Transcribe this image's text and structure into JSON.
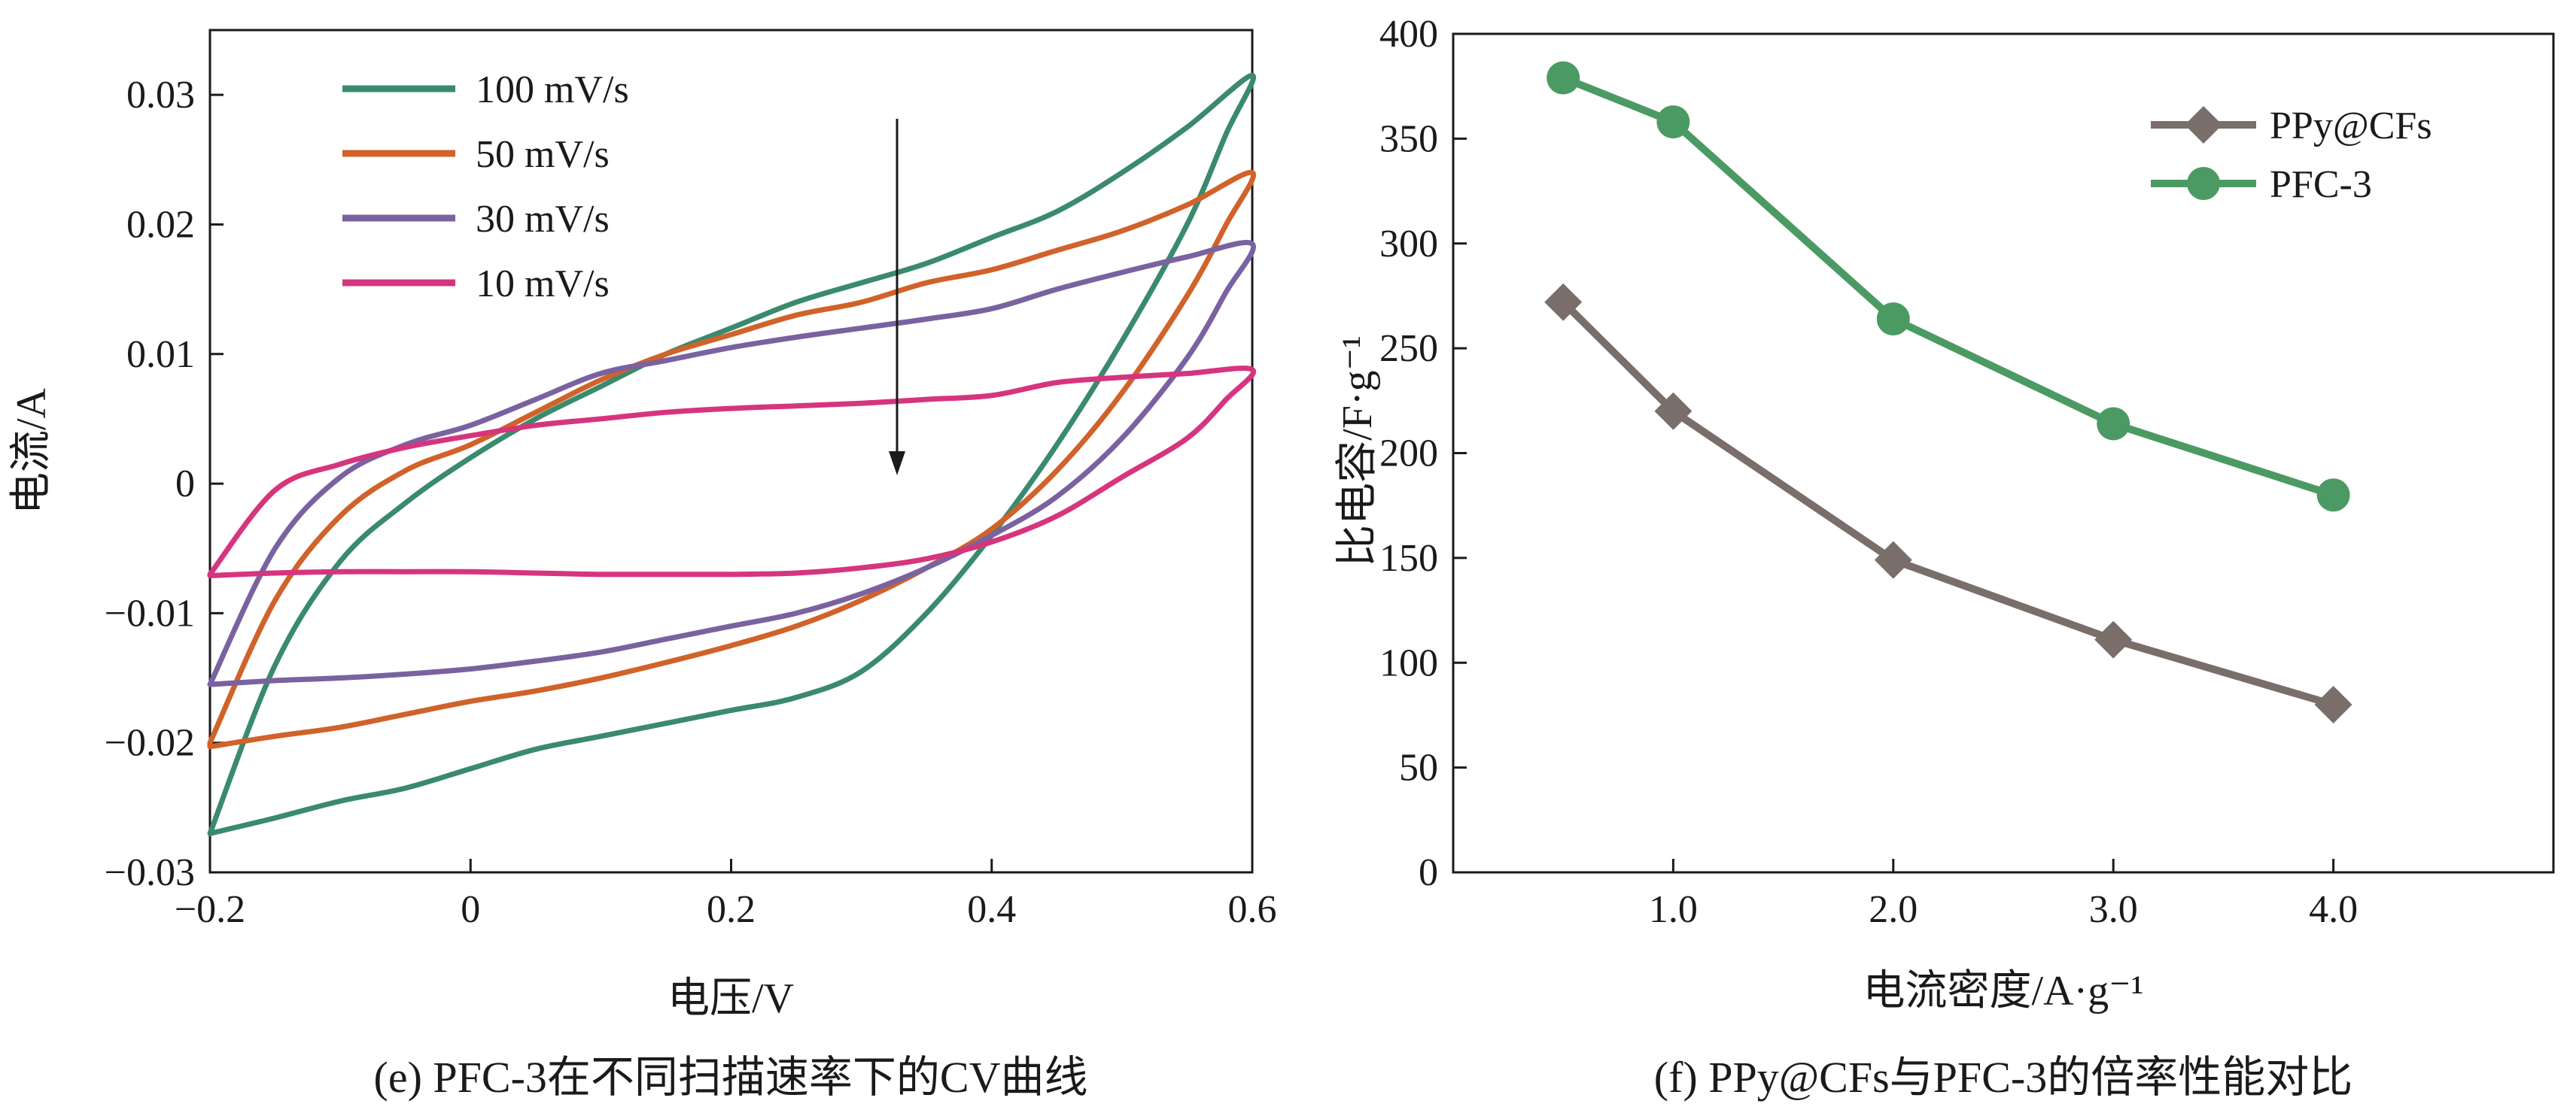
{
  "chart_data": [
    {
      "type": "line",
      "panel": "e",
      "caption": "(e) PFC-3在不同扫描速率下的CV曲线",
      "xlabel": "电压/V",
      "ylabel": "电流/A",
      "xlim": [
        -0.2,
        0.6
      ],
      "ylim": [
        -0.03,
        0.035
      ],
      "xticks": [
        "−0.2",
        "0",
        "0.2",
        "0.4",
        "0.6"
      ],
      "yticks": [
        "0.03",
        "0.02",
        "0.01",
        "0",
        "−0.01",
        "−0.02",
        "−0.03"
      ],
      "legend_position": "top-left",
      "annotation": "arrow from 100 mV/s to 10 mV/s",
      "series": [
        {
          "name": "100 mV/s",
          "color": "#3a8a6e",
          "x": [
            -0.2,
            -0.15,
            -0.1,
            -0.05,
            0.0,
            0.05,
            0.1,
            0.15,
            0.2,
            0.25,
            0.3,
            0.35,
            0.4,
            0.45,
            0.5,
            0.55,
            0.6,
            0.58,
            0.55,
            0.5,
            0.45,
            0.4,
            0.35,
            0.3,
            0.25,
            0.2,
            0.15,
            0.1,
            0.05,
            0.0,
            -0.05,
            -0.1,
            -0.15,
            -0.2
          ],
          "y": [
            -0.027,
            -0.014,
            -0.006,
            -0.0015,
            0.002,
            0.005,
            0.0075,
            0.01,
            0.012,
            0.014,
            0.0155,
            0.017,
            0.019,
            0.021,
            0.024,
            0.0275,
            0.0315,
            0.027,
            0.02,
            0.011,
            0.003,
            -0.004,
            -0.01,
            -0.0145,
            -0.0165,
            -0.0175,
            -0.0185,
            -0.0195,
            -0.0205,
            -0.022,
            -0.0235,
            -0.0245,
            -0.0258,
            -0.027
          ]
        },
        {
          "name": "50 mV/s",
          "color": "#d0622a",
          "x": [
            -0.2,
            -0.15,
            -0.1,
            -0.05,
            0.0,
            0.05,
            0.1,
            0.15,
            0.2,
            0.25,
            0.3,
            0.35,
            0.4,
            0.45,
            0.5,
            0.55,
            0.6,
            0.58,
            0.55,
            0.5,
            0.45,
            0.4,
            0.35,
            0.3,
            0.25,
            0.2,
            0.15,
            0.1,
            0.05,
            0.0,
            -0.05,
            -0.1,
            -0.15,
            -0.2
          ],
          "y": [
            -0.02,
            -0.009,
            -0.0025,
            0.001,
            0.003,
            0.0055,
            0.008,
            0.01,
            0.0115,
            0.013,
            0.014,
            0.0155,
            0.0165,
            0.018,
            0.0195,
            0.0215,
            0.024,
            0.02,
            0.0145,
            0.007,
            0.001,
            -0.0035,
            -0.0065,
            -0.009,
            -0.011,
            -0.0125,
            -0.0138,
            -0.015,
            -0.016,
            -0.0168,
            -0.0178,
            -0.0188,
            -0.0195,
            -0.0203
          ]
        },
        {
          "name": "30 mV/s",
          "color": "#7a62a0",
          "x": [
            -0.2,
            -0.15,
            -0.1,
            -0.05,
            0.0,
            0.05,
            0.1,
            0.15,
            0.2,
            0.25,
            0.3,
            0.35,
            0.4,
            0.45,
            0.5,
            0.55,
            0.6,
            0.58,
            0.55,
            0.5,
            0.45,
            0.4,
            0.35,
            0.3,
            0.25,
            0.2,
            0.15,
            0.1,
            0.05,
            0.0,
            -0.05,
            -0.1,
            -0.15,
            -0.2
          ],
          "y": [
            -0.0155,
            -0.005,
            0.0005,
            0.003,
            0.0045,
            0.0065,
            0.0085,
            0.0095,
            0.0105,
            0.0113,
            0.012,
            0.0127,
            0.0135,
            0.015,
            0.0163,
            0.0175,
            0.0185,
            0.0148,
            0.0097,
            0.0035,
            -0.001,
            -0.004,
            -0.0065,
            -0.0085,
            -0.01,
            -0.011,
            -0.012,
            -0.013,
            -0.0137,
            -0.0143,
            -0.0147,
            -0.015,
            -0.0152,
            -0.0155
          ]
        },
        {
          "name": "10 mV/s",
          "color": "#d6357e",
          "x": [
            -0.2,
            -0.15,
            -0.1,
            -0.05,
            0.0,
            0.05,
            0.1,
            0.15,
            0.2,
            0.25,
            0.3,
            0.35,
            0.4,
            0.45,
            0.5,
            0.55,
            0.6,
            0.58,
            0.55,
            0.5,
            0.45,
            0.4,
            0.35,
            0.3,
            0.25,
            0.2,
            0.15,
            0.1,
            0.05,
            0.0,
            -0.05,
            -0.1,
            -0.15,
            -0.2
          ],
          "y": [
            -0.007,
            -0.0005,
            0.0015,
            0.0028,
            0.0037,
            0.0045,
            0.005,
            0.0055,
            0.0058,
            0.006,
            0.0062,
            0.0065,
            0.0068,
            0.0078,
            0.0082,
            0.0085,
            0.0088,
            0.0065,
            0.0035,
            0.0005,
            -0.0025,
            -0.0045,
            -0.0058,
            -0.0065,
            -0.0069,
            -0.007,
            -0.007,
            -0.007,
            -0.0069,
            -0.0068,
            -0.0068,
            -0.0068,
            -0.0069,
            -0.0071
          ]
        }
      ]
    },
    {
      "type": "line",
      "panel": "f",
      "caption": "(f) PPy@CFs与PFC-3的倍率性能对比",
      "xlabel": "电流密度/A·g⁻¹",
      "ylabel": "比电容/F·g⁻¹",
      "xlim": [
        0,
        5
      ],
      "ylim": [
        0,
        400
      ],
      "xticks": [
        "1.0",
        "2.0",
        "3.0",
        "4.0"
      ],
      "xtick_values": [
        1.0,
        2.0,
        3.0,
        4.0
      ],
      "yticks": [
        "400",
        "350",
        "300",
        "250",
        "200",
        "150",
        "100",
        "50",
        "0"
      ],
      "legend_position": "top-right",
      "series": [
        {
          "name": "PPy@CFs",
          "color": "#7a6e6a",
          "marker": "diamond",
          "x": [
            0.5,
            1.0,
            2.0,
            3.0,
            4.0
          ],
          "y": [
            272,
            220,
            149,
            111,
            80
          ]
        },
        {
          "name": "PFC-3",
          "color": "#4c9a63",
          "marker": "circle",
          "x": [
            0.5,
            1.0,
            2.0,
            3.0,
            4.0
          ],
          "y": [
            379,
            358,
            264,
            214,
            180
          ]
        }
      ]
    }
  ]
}
